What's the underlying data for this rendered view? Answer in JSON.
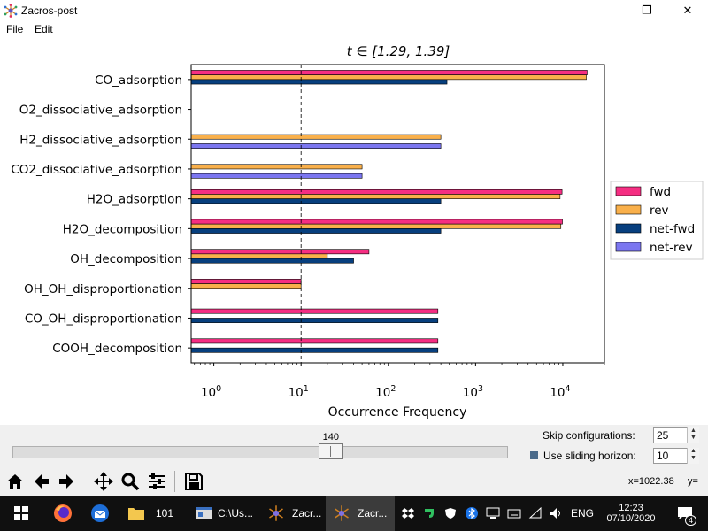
{
  "window": {
    "title": "Zacros-post",
    "minimize_glyph": "—",
    "maximize_glyph": "❐",
    "close_glyph": "✕"
  },
  "menu": [
    "File",
    "Edit"
  ],
  "chart_data": {
    "type": "bar",
    "orientation": "horizontal",
    "title": "t ∈ [1.29, 1.39]",
    "xlabel": "Occurrence Frequency",
    "ylabel": "",
    "xscale": "log",
    "xlim": [
      0.55,
      30000
    ],
    "xticks": [
      1,
      10,
      100,
      1000,
      10000
    ],
    "xtick_labels": [
      "10",
      "10",
      "10",
      "10",
      "10"
    ],
    "xtick_exponents": [
      "0",
      "1",
      "2",
      "3",
      "4"
    ],
    "reference_line_x": 10,
    "legend_position": "right",
    "categories": [
      "CO_adsorption",
      "O2_dissociative_adsorption",
      "H2_dissociative_adsorption",
      "CO2_dissociative_adsorption",
      "H2O_adsorption",
      "H2O_decomposition",
      "OH_decomposition",
      "OH_OH_disproportionation",
      "CO_OH_disproportionation",
      "COOH_decomposition"
    ],
    "series": [
      {
        "name": "fwd",
        "color": "#f52e82",
        "values": [
          19000,
          null,
          null,
          null,
          9800,
          9900,
          60,
          10,
          370,
          370
        ]
      },
      {
        "name": "rev",
        "color": "#f9b04b",
        "values": [
          18600,
          null,
          400,
          50,
          9300,
          9500,
          20,
          10,
          null,
          null
        ]
      },
      {
        "name": "net-fwd",
        "color": "#073f7e",
        "values": [
          470,
          null,
          null,
          null,
          400,
          400,
          40,
          null,
          370,
          370
        ]
      },
      {
        "name": "net-rev",
        "color": "#7b76f0",
        "values": [
          null,
          null,
          400,
          50,
          null,
          null,
          null,
          null,
          null,
          null
        ]
      }
    ]
  },
  "controls": {
    "slider_value": "140",
    "slider_fraction": 0.65,
    "skip_label": "Skip configurations:",
    "skip_value": "25",
    "horizon_label": "Use sliding horizon:",
    "horizon_value": "10"
  },
  "toolbar": {
    "buttons": [
      "home-icon",
      "back-icon",
      "forward-icon",
      "pan-icon",
      "zoom-icon",
      "configure-icon",
      "save-icon"
    ],
    "coords": "x=1022.38     y="
  },
  "taskbar": {
    "items": [
      {
        "name": "file-explorer",
        "label": "101"
      },
      {
        "name": "cmd",
        "label": "C:\\Us..."
      },
      {
        "name": "zacros-1",
        "label": "Zacr..."
      },
      {
        "name": "zacros-2",
        "label": "Zacr..."
      }
    ],
    "language": "ENG",
    "time": "12:23",
    "date": "07/10/2020",
    "notifications": "4"
  }
}
